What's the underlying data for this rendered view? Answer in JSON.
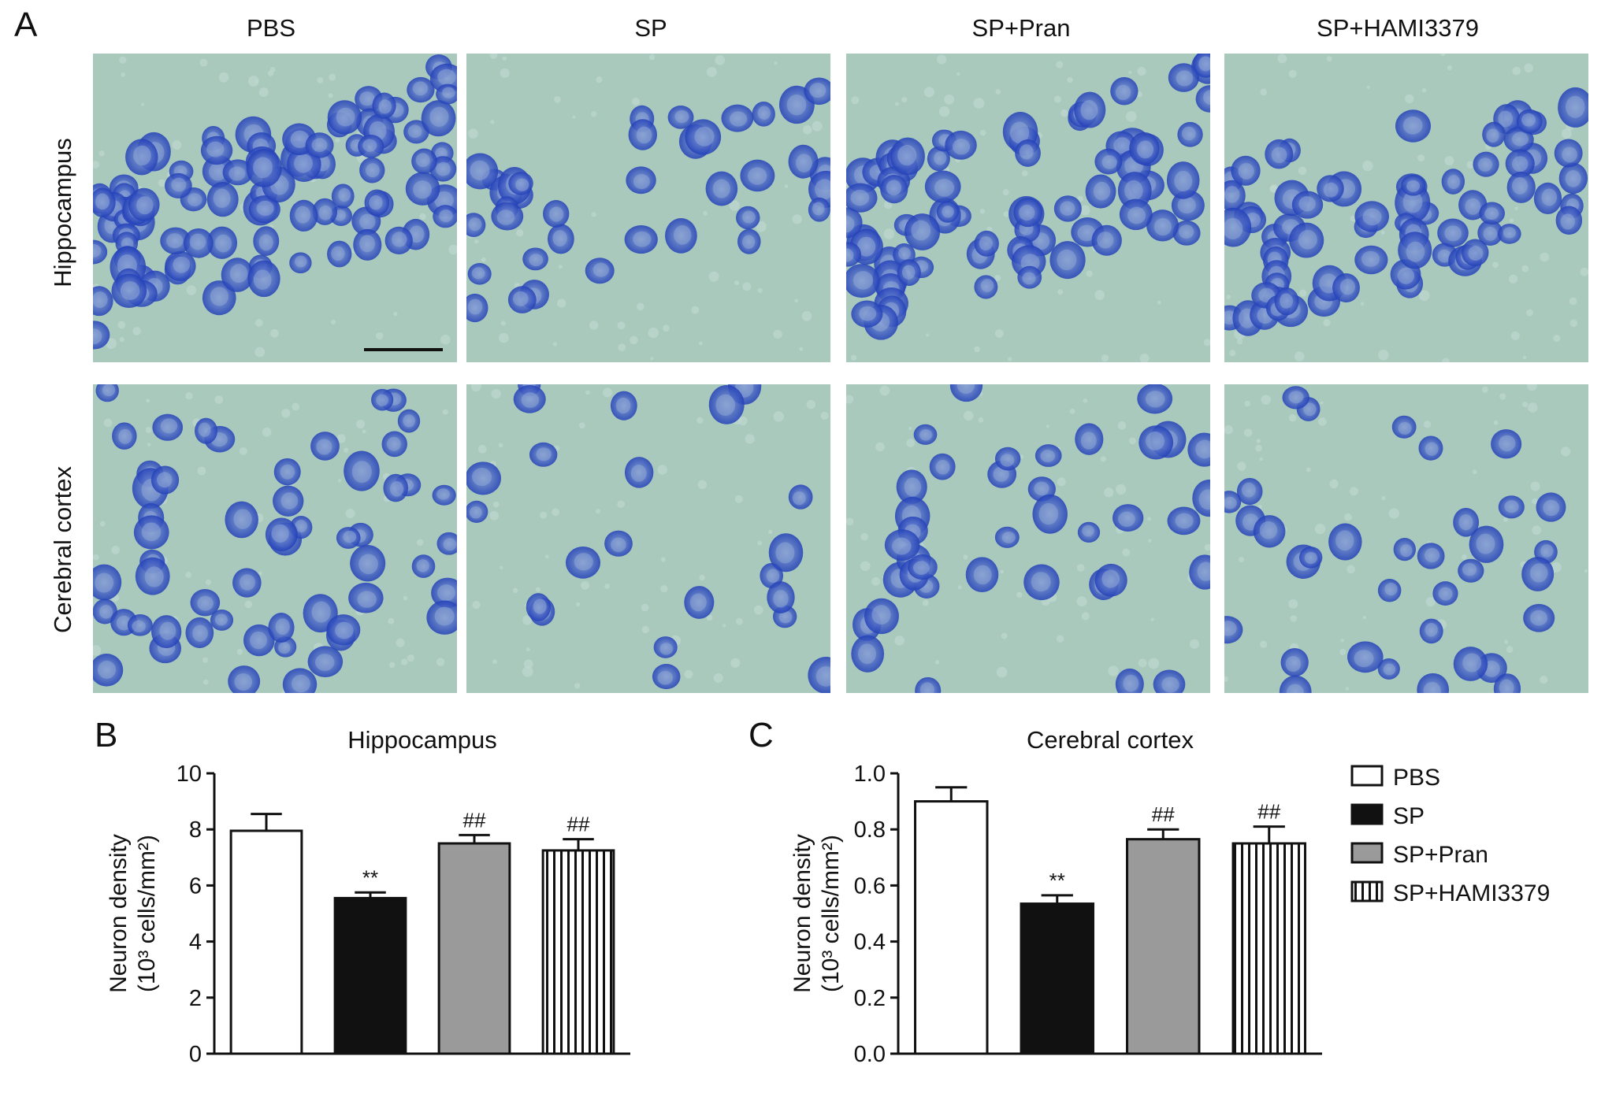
{
  "panel_a": {
    "letter": "A",
    "columns": [
      "PBS",
      "SP",
      "SP+Pran",
      "SP+HAMI3379"
    ],
    "rows": [
      "Hippocampus",
      "Cerebral cortex"
    ]
  },
  "colors": {
    "tissue_bg": "#a9c9bd",
    "neuron_stain": "#2f4fc0",
    "pbs_fill": "#ffffff",
    "sp_fill": "#111111",
    "pran_fill": "#9a9a9a",
    "hami_fill": "hatched"
  },
  "legend": {
    "items": [
      {
        "label": "PBS",
        "fill": "white"
      },
      {
        "label": "SP",
        "fill": "black"
      },
      {
        "label": "SP+Pran",
        "fill": "gray"
      },
      {
        "label": "SP+HAMI3379",
        "fill": "vertical-stripes"
      }
    ]
  },
  "chart_data": [
    {
      "panel": "B",
      "type": "bar",
      "title": "Hippocampus",
      "ylabel_line1": "Neuron density",
      "ylabel_line2": "(10³ cells/mm²)",
      "categories": [
        "PBS",
        "SP",
        "SP+Pran",
        "SP+HAMI3379"
      ],
      "values": [
        7.95,
        5.55,
        7.5,
        7.25
      ],
      "errors": [
        0.6,
        0.2,
        0.3,
        0.4
      ],
      "annotations": [
        "",
        "**",
        "##",
        "##"
      ],
      "ylim": [
        0,
        10
      ],
      "yticks": [
        "0",
        "2",
        "4",
        "6",
        "8",
        "10"
      ]
    },
    {
      "panel": "C",
      "type": "bar",
      "title": "Cerebral cortex",
      "ylabel_line1": "Neuron density",
      "ylabel_line2": "(10³ cells/mm²)",
      "categories": [
        "PBS",
        "SP",
        "SP+Pran",
        "SP+HAMI3379"
      ],
      "values": [
        0.9,
        0.535,
        0.765,
        0.75
      ],
      "errors": [
        0.05,
        0.03,
        0.035,
        0.06
      ],
      "annotations": [
        "",
        "**",
        "##",
        "##"
      ],
      "ylim": [
        0,
        1.0
      ],
      "yticks": [
        "0.0",
        "0.2",
        "0.4",
        "0.6",
        "0.8",
        "1.0"
      ]
    }
  ]
}
